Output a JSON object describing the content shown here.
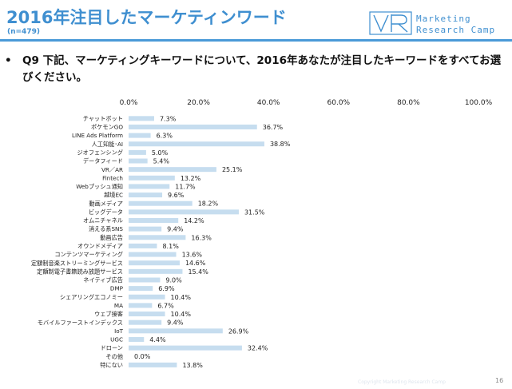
{
  "header": {
    "title": "2016年注目したマーケティンワード",
    "sample_note": "(n=479)",
    "accent_color": "#3f8fd0"
  },
  "logo": {
    "line1": "Marketing",
    "line2": "Research Camp",
    "icon": "vr-logo-icon"
  },
  "question": {
    "bullet": "•",
    "text": "Q9 下記、マーケティングキーワードについて、2016年あなたが注目したキーワードをすべてお選びください。"
  },
  "page_number": "16",
  "footnote": "Copyright Marketing Research Camp",
  "chart_data": {
    "type": "bar",
    "orientation": "horizontal",
    "bar_color": "#c6ddef",
    "xlim": [
      0,
      100
    ],
    "ticks": [
      "0.0%",
      "20.0%",
      "40.0%",
      "60.0%",
      "80.0%",
      "100.0%"
    ],
    "tick_values": [
      0,
      20,
      40,
      60,
      80,
      100
    ],
    "grid": false,
    "categories": [
      "チャットボット",
      "ポケモンGO",
      "LINE Ads Platform",
      "人工知能･AI",
      "ジオフェンシング",
      "データフィード",
      "VR／AR",
      "Fintech",
      "Webプッシュ通知",
      "越境EC",
      "動画メディア",
      "ビッグデータ",
      "オムニチャネル",
      "消える系SNS",
      "動画広告",
      "オウンドメディア",
      "コンテンツマーケティング",
      "定額制音楽ストリーミングサービス",
      "定額制電子書籍読み放題サービス",
      "ネイティブ広告",
      "DMP",
      "シェアリングエコノミー",
      "MA",
      "ウェブ接客",
      "モバイルファーストインデックス",
      "IoT",
      "UGC",
      "ドローン",
      "その他",
      "特にない"
    ],
    "values": [
      7.3,
      36.7,
      6.3,
      38.8,
      5.0,
      5.4,
      25.1,
      13.2,
      11.7,
      9.6,
      18.2,
      31.5,
      14.2,
      9.4,
      16.3,
      8.1,
      13.6,
      14.6,
      15.4,
      9.0,
      6.9,
      10.4,
      6.7,
      10.4,
      9.4,
      26.9,
      4.4,
      32.4,
      0.0,
      13.8
    ],
    "labels": [
      "7.3%",
      "36.7%",
      "6.3%",
      "38.8%",
      "5.0%",
      "5.4%",
      "25.1%",
      "13.2%",
      "11.7%",
      "9.6%",
      "18.2%",
      "31.5%",
      "14.2%",
      "9.4%",
      "16.3%",
      "8.1%",
      "13.6%",
      "14.6%",
      "15.4%",
      "9.0%",
      "6.9%",
      "10.4%",
      "6.7%",
      "10.4%",
      "9.4%",
      "26.9%",
      "4.4%",
      "32.4%",
      "0.0%",
      "13.8%"
    ]
  }
}
